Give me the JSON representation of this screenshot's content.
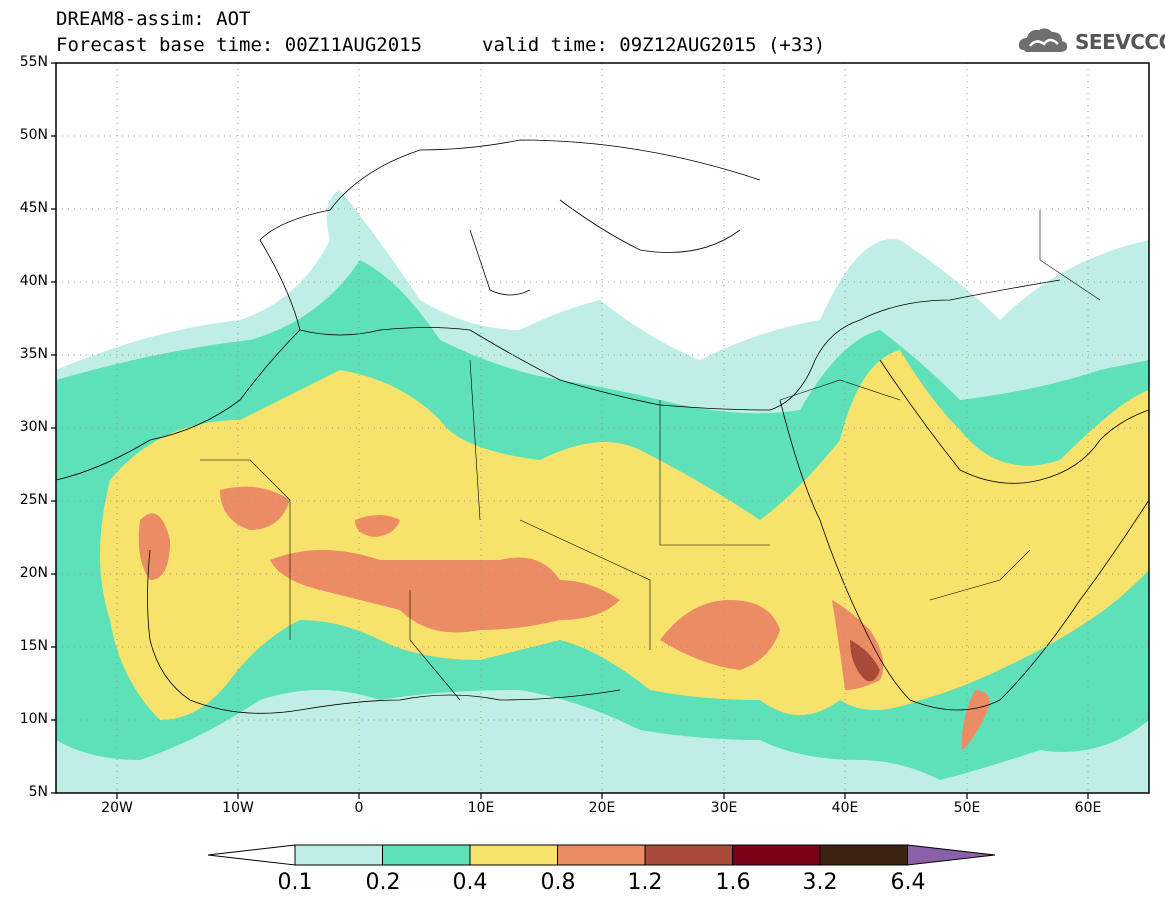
{
  "header": {
    "line1": "DREAM8-assim: AOT",
    "base_time": "Forecast base time: 00Z11AUG2015",
    "valid_time": "valid time: 09Z12AUG2015 (+33)",
    "logo_text": "SEEVCCC"
  },
  "map": {
    "region": "North Africa, Middle East and Europe",
    "lat_labels": [
      "55N",
      "50N",
      "45N",
      "40N",
      "35N",
      "30N",
      "25N",
      "20N",
      "15N",
      "10N",
      "5N"
    ],
    "lon_labels": [
      "20W",
      "10W",
      "0",
      "10E",
      "20E",
      "30E",
      "40E",
      "50E",
      "60E"
    ],
    "lon_range": [
      -25,
      65
    ],
    "lat_range": [
      5,
      55
    ]
  },
  "colorbar": {
    "labels": [
      "0.1",
      "0.2",
      "0.4",
      "0.8",
      "1.2",
      "1.6",
      "3.2",
      "6.4"
    ],
    "colors": [
      "#ffffff",
      "#bfeee6",
      "#5ee0b8",
      "#f7e26b",
      "#ec8c64",
      "#a84a38",
      "#7a0018",
      "#3d2412",
      "#8a60a8"
    ]
  }
}
